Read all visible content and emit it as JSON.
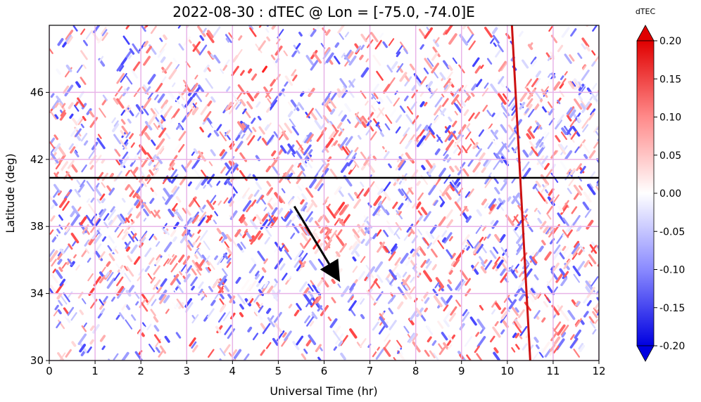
{
  "chart_data": {
    "type": "heatmap",
    "title": "2022-08-30 : dTEC @   Lon = [-75.0, -74.0]E",
    "xlabel": "Universal Time (hr)",
    "ylabel": "Latitude (deg)",
    "xlim": [
      0,
      12
    ],
    "ylim": [
      30,
      50
    ],
    "x_ticks": [
      "0",
      "1",
      "2",
      "3",
      "4",
      "5",
      "6",
      "7",
      "8",
      "9",
      "10",
      "11",
      "12"
    ],
    "y_ticks": [
      "30",
      "34",
      "38",
      "42",
      "46"
    ],
    "grid": true,
    "grid_color": "#e8b4e8",
    "colorbar": {
      "label": "dTEC",
      "min": -0.2,
      "max": 0.2,
      "ticks": [
        "0.20",
        "0.15",
        "0.10",
        "0.05",
        "0.00",
        "-0.05",
        "-0.10",
        "-0.15",
        "-0.20"
      ],
      "extend": "both",
      "colormap": "bwr",
      "color_low": "#0000ff",
      "color_mid": "#ffffff",
      "color_high": "#ff0000"
    },
    "horizontal_line": {
      "lat": 40.9,
      "color": "#000000"
    },
    "dusk_terminator": {
      "points": [
        [
          10.1,
          50
        ],
        [
          10.5,
          30
        ]
      ],
      "color": "#cc1111"
    },
    "arrow": {
      "from": [
        5.35,
        39.2
      ],
      "to": [
        6.3,
        34.9
      ],
      "color": "#000000"
    },
    "features": [
      {
        "desc": "blue",
        "t": 6.4,
        "lat": 37.5,
        "value": -0.2
      },
      {
        "desc": "red",
        "t": 6.3,
        "lat": 38.0,
        "value": 0.2
      },
      {
        "desc": "blue",
        "t": 10.0,
        "lat": 41.5,
        "value": -0.12
      },
      {
        "desc": "red",
        "t": 4.4,
        "lat": 47.0,
        "value": 0.15
      }
    ]
  }
}
